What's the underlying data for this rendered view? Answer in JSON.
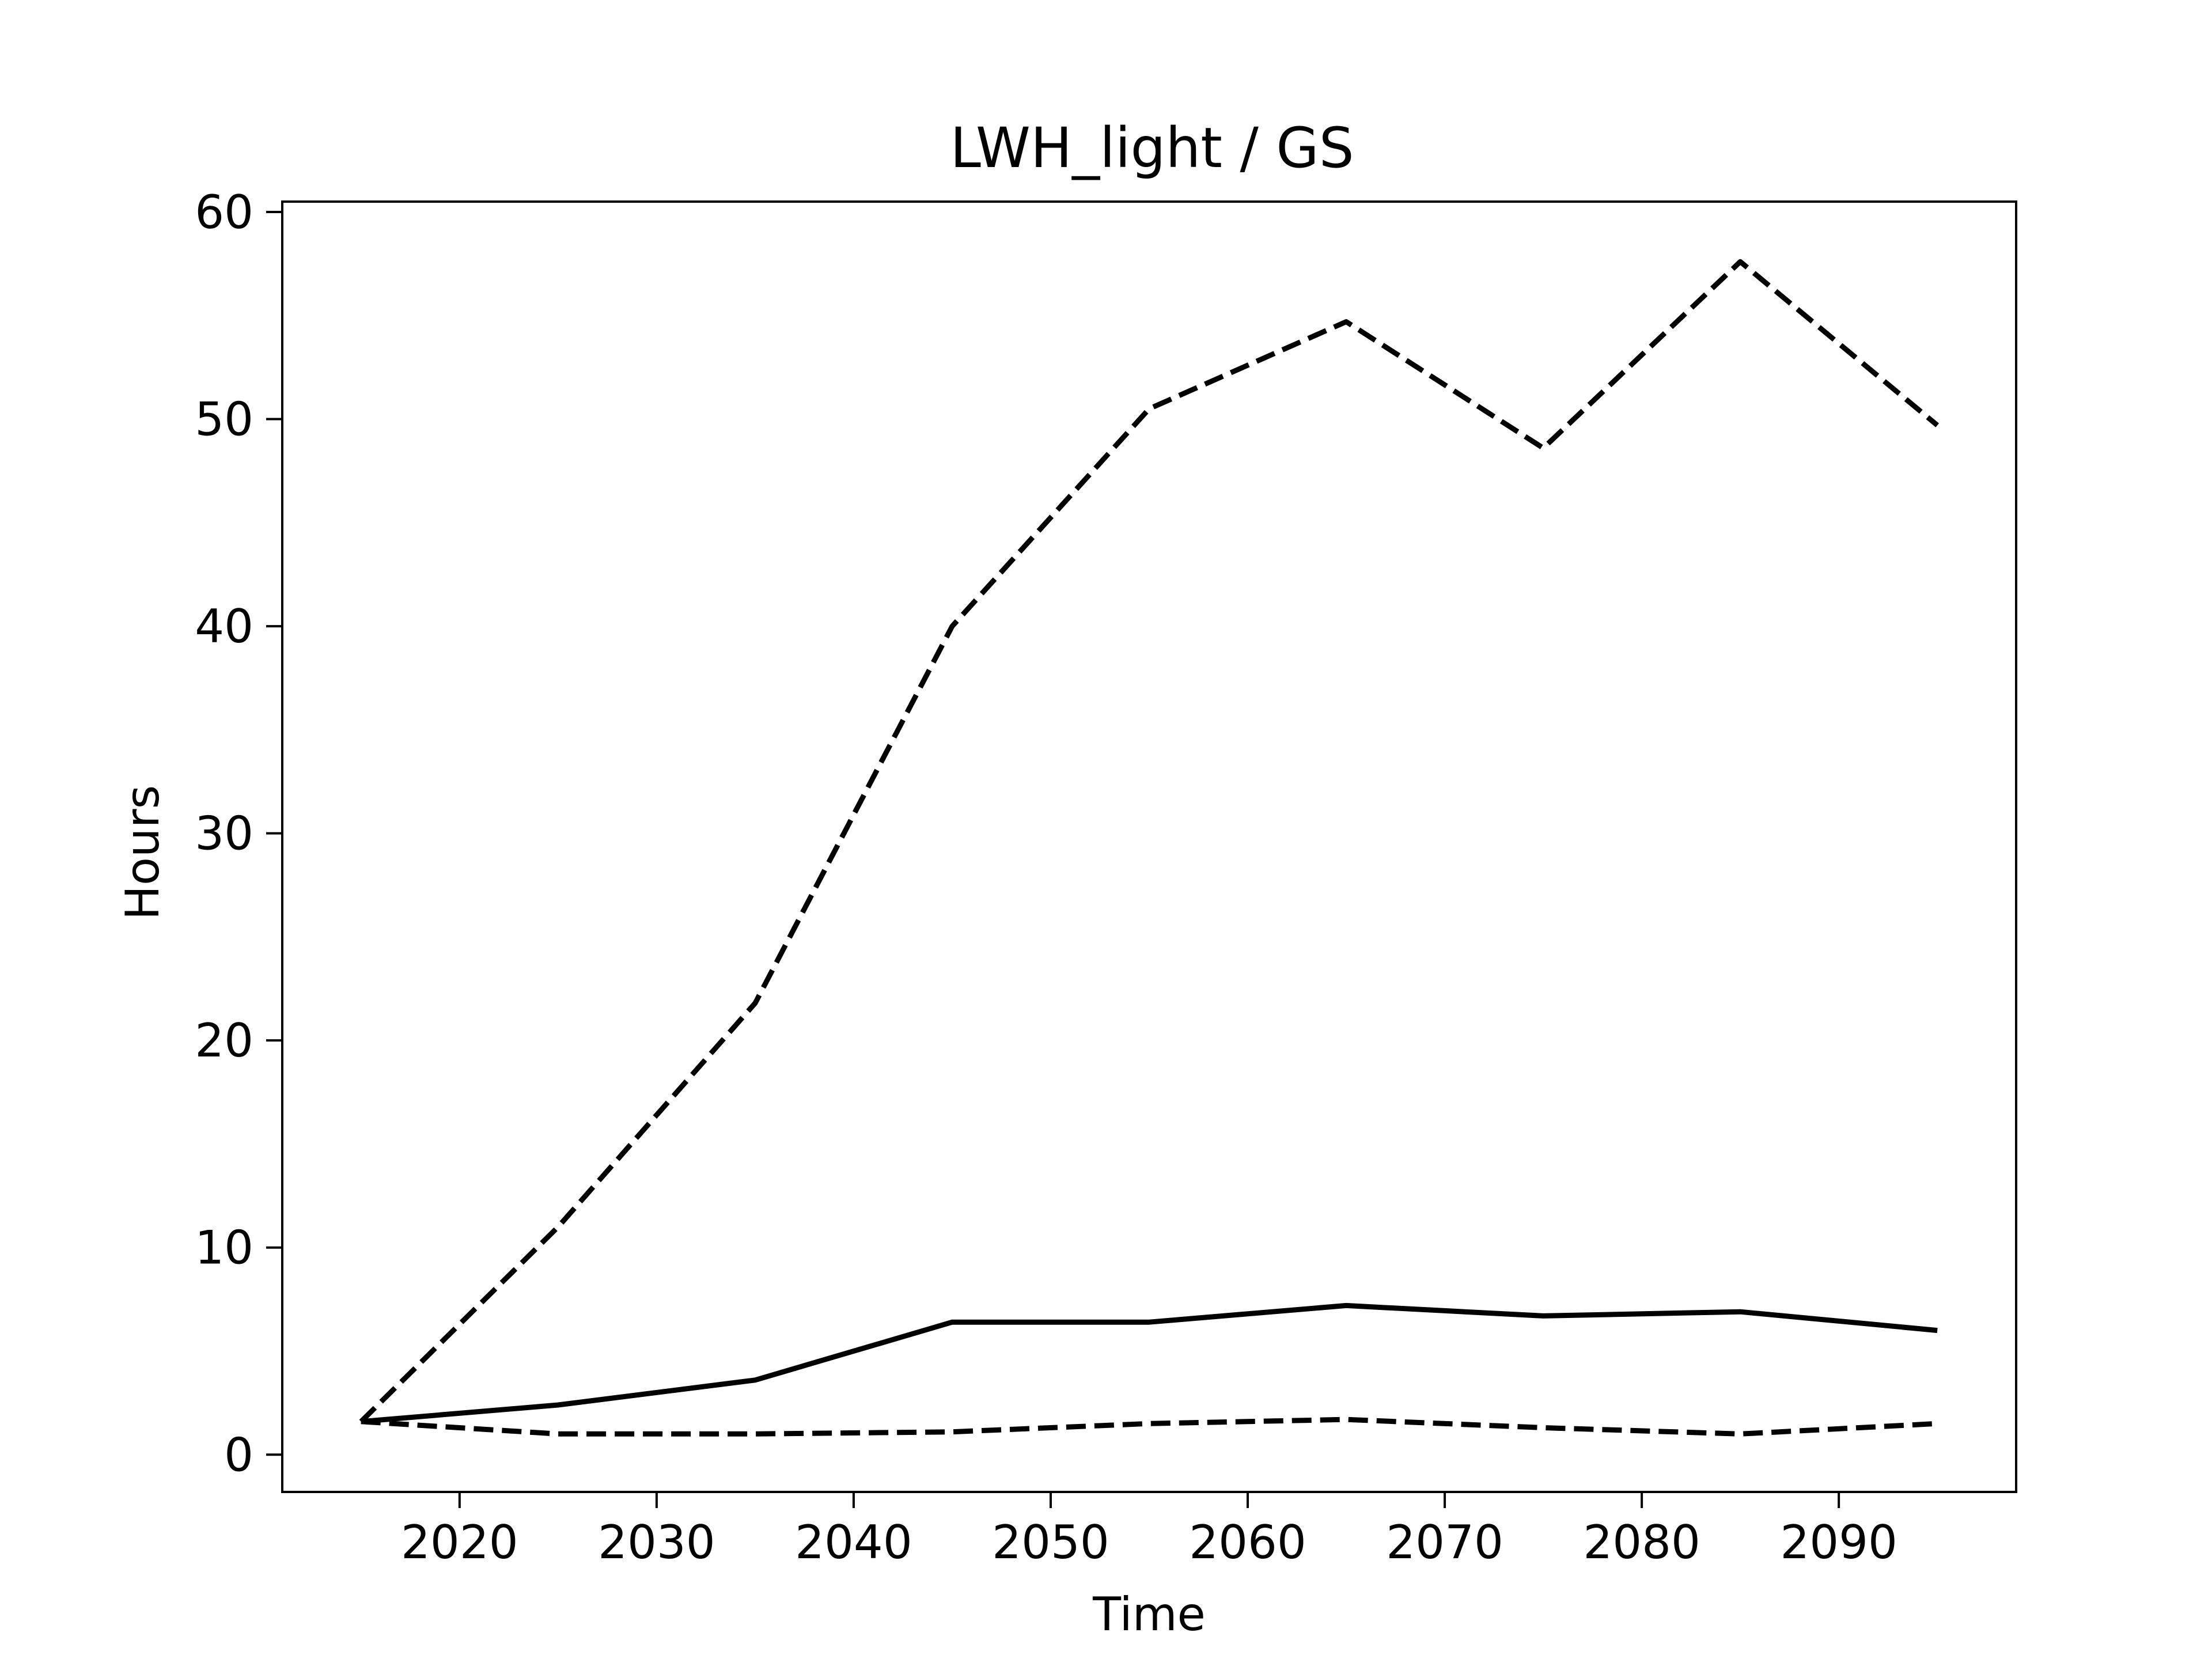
{
  "chart_data": {
    "type": "line",
    "title": "LWH_light / GS",
    "xlabel": "Time",
    "ylabel": "Hours",
    "xlim": [
      2011,
      2099
    ],
    "ylim": [
      -1.8,
      60.5
    ],
    "xticks": [
      2020,
      2030,
      2040,
      2050,
      2060,
      2070,
      2080,
      2090
    ],
    "yticks": [
      0,
      10,
      20,
      30,
      40,
      50,
      60
    ],
    "grid": false,
    "legend": "none",
    "x": [
      2015,
      2025,
      2035,
      2045,
      2055,
      2065,
      2075,
      2085,
      2095
    ],
    "series": [
      {
        "style": "dashed",
        "color": "#000000",
        "values": [
          1.6,
          11.0,
          21.8,
          40.0,
          50.5,
          54.7,
          48.6,
          57.6,
          49.7
        ]
      },
      {
        "style": "solid",
        "color": "#000000",
        "values": [
          1.6,
          2.4,
          3.6,
          6.4,
          6.4,
          7.2,
          6.7,
          6.9,
          6.0
        ]
      },
      {
        "style": "dashed",
        "color": "#000000",
        "values": [
          1.6,
          1.0,
          1.0,
          1.1,
          1.5,
          1.7,
          1.3,
          1.0,
          1.5
        ]
      }
    ]
  }
}
